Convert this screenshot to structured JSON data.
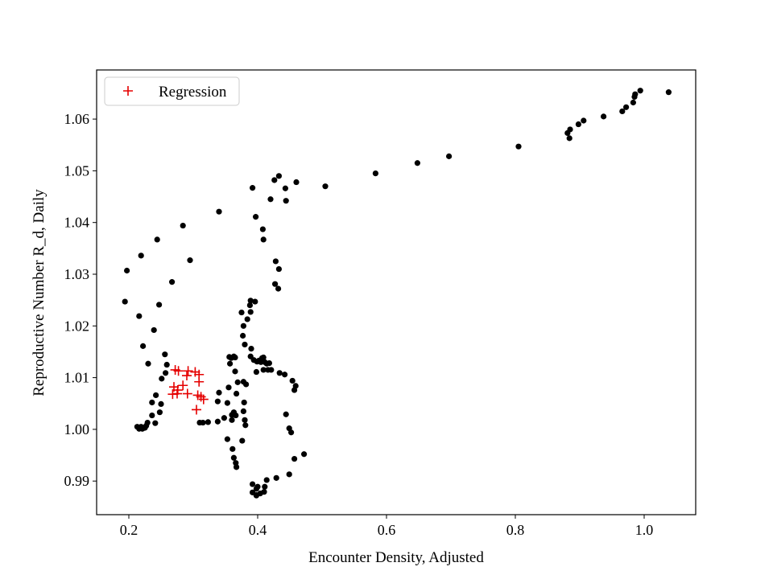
{
  "colors": {
    "background": "#ffffff",
    "observed": "#000000",
    "regression": "#e50000",
    "legend_border": "#cccccc"
  },
  "chart_data": {
    "type": "scatter",
    "xlabel": "Encounter Density, Adjusted",
    "ylabel": "Reproductive Number R_d, Daily",
    "xlim": [
      0.15,
      1.08
    ],
    "ylim": [
      0.9835,
      1.0695
    ],
    "x_ticks": [
      0.2,
      0.4,
      0.6,
      0.8,
      1.0
    ],
    "x_tick_labels": [
      "0.2",
      "0.4",
      "0.6",
      "0.8",
      "1.0"
    ],
    "y_ticks": [
      0.99,
      1.0,
      1.01,
      1.02,
      1.03,
      1.04,
      1.05,
      1.06
    ],
    "y_tick_labels": [
      "0.99",
      "1.00",
      "1.01",
      "1.02",
      "1.03",
      "1.04",
      "1.05",
      "1.06"
    ],
    "grid": false,
    "legend_position": "upper-left",
    "series": [
      {
        "marker": "dot",
        "color": "#000000",
        "points": [
          [
            1.038,
            1.0652
          ],
          [
            0.994,
            1.0655
          ],
          [
            0.986,
            1.0648
          ],
          [
            0.985,
            1.0643
          ],
          [
            0.983,
            1.0632
          ],
          [
            0.972,
            1.0623
          ],
          [
            0.966,
            1.0615
          ],
          [
            0.937,
            1.0605
          ],
          [
            0.906,
            1.0597
          ],
          [
            0.898,
            1.059
          ],
          [
            0.885,
            1.058
          ],
          [
            0.881,
            1.0573
          ],
          [
            0.884,
            1.0563
          ],
          [
            0.805,
            1.0547
          ],
          [
            0.697,
            1.0528
          ],
          [
            0.648,
            1.0515
          ],
          [
            0.583,
            1.0495
          ],
          [
            0.505,
            1.047
          ],
          [
            0.46,
            1.0478
          ],
          [
            0.433,
            1.049
          ],
          [
            0.426,
            1.0482
          ],
          [
            0.443,
            1.0466
          ],
          [
            0.392,
            1.0467
          ],
          [
            0.42,
            1.0445
          ],
          [
            0.444,
            1.0442
          ],
          [
            0.34,
            1.0421
          ],
          [
            0.397,
            1.0411
          ],
          [
            0.408,
            1.0387
          ],
          [
            0.409,
            1.0367
          ],
          [
            0.428,
            1.0325
          ],
          [
            0.433,
            1.031
          ],
          [
            0.427,
            1.0281
          ],
          [
            0.432,
            1.0272
          ],
          [
            0.284,
            1.0394
          ],
          [
            0.244,
            1.0367
          ],
          [
            0.219,
            1.0336
          ],
          [
            0.295,
            1.0327
          ],
          [
            0.197,
            1.0307
          ],
          [
            0.267,
            1.0285
          ],
          [
            0.194,
            1.0247
          ],
          [
            0.247,
            1.0241
          ],
          [
            0.216,
            1.0219
          ],
          [
            0.239,
            1.0192
          ],
          [
            0.222,
            1.0161
          ],
          [
            0.256,
            1.0145
          ],
          [
            0.23,
            1.0127
          ],
          [
            0.259,
            1.0125
          ],
          [
            0.257,
            1.0109
          ],
          [
            0.251,
            1.0098
          ],
          [
            0.242,
            1.0066
          ],
          [
            0.25,
            1.0049
          ],
          [
            0.236,
            1.0052
          ],
          [
            0.236,
            1.0027
          ],
          [
            0.248,
            1.0033
          ],
          [
            0.241,
            1.0012
          ],
          [
            0.229,
            1.0013
          ],
          [
            0.227,
            1.0007
          ],
          [
            0.225,
            1.0003
          ],
          [
            0.219,
            1.0005
          ],
          [
            0.213,
            1.0005
          ],
          [
            0.216,
            1.0001
          ],
          [
            0.221,
            1.0001
          ],
          [
            0.31,
            1.0013
          ],
          [
            0.315,
            1.0013
          ],
          [
            0.323,
            1.0014
          ],
          [
            0.338,
            1.0015
          ],
          [
            0.348,
            1.0022
          ],
          [
            0.353,
            0.9981
          ],
          [
            0.361,
            0.9962
          ],
          [
            0.363,
            0.9945
          ],
          [
            0.366,
            0.9935
          ],
          [
            0.367,
            0.9927
          ],
          [
            0.392,
            0.9894
          ],
          [
            0.4,
            0.9889
          ],
          [
            0.398,
            0.9885
          ],
          [
            0.411,
            0.9889
          ],
          [
            0.414,
            0.9902
          ],
          [
            0.392,
            0.9878
          ],
          [
            0.398,
            0.9873
          ],
          [
            0.404,
            0.9876
          ],
          [
            0.41,
            0.9879
          ],
          [
            0.398,
            0.9872
          ],
          [
            0.429,
            0.9906
          ],
          [
            0.449,
            0.9913
          ],
          [
            0.457,
            0.9943
          ],
          [
            0.472,
            0.9952
          ],
          [
            0.376,
            0.9978
          ],
          [
            0.381,
            1.0008
          ],
          [
            0.38,
            1.0018
          ],
          [
            0.378,
            1.0035
          ],
          [
            0.379,
            1.0052
          ],
          [
            0.366,
            1.0027
          ],
          [
            0.363,
            1.0033
          ],
          [
            0.36,
            1.0028
          ],
          [
            0.36,
            1.0018
          ],
          [
            0.353,
            1.0051
          ],
          [
            0.338,
            1.0054
          ],
          [
            0.34,
            1.0071
          ],
          [
            0.355,
            1.0081
          ],
          [
            0.367,
            1.0069
          ],
          [
            0.369,
            1.0091
          ],
          [
            0.378,
            1.0092
          ],
          [
            0.382,
            1.0087
          ],
          [
            0.365,
            1.0112
          ],
          [
            0.363,
            1.0141
          ],
          [
            0.359,
            1.0138
          ],
          [
            0.365,
            1.0139
          ],
          [
            0.357,
            1.0127
          ],
          [
            0.356,
            1.014
          ],
          [
            0.389,
            1.0141
          ],
          [
            0.394,
            1.0134
          ],
          [
            0.399,
            1.0131
          ],
          [
            0.402,
            1.0133
          ],
          [
            0.407,
            1.0138
          ],
          [
            0.411,
            1.013
          ],
          [
            0.414,
            1.0127
          ],
          [
            0.418,
            1.0128
          ],
          [
            0.405,
            1.013
          ],
          [
            0.409,
            1.0139
          ],
          [
            0.398,
            1.0111
          ],
          [
            0.409,
            1.0115
          ],
          [
            0.416,
            1.0115
          ],
          [
            0.421,
            1.0115
          ],
          [
            0.434,
            1.0109
          ],
          [
            0.442,
            1.0106
          ],
          [
            0.454,
            1.0094
          ],
          [
            0.459,
            1.0084
          ],
          [
            0.457,
            1.0076
          ],
          [
            0.444,
            1.0029
          ],
          [
            0.449,
            1.0002
          ],
          [
            0.452,
            0.9994
          ],
          [
            0.39,
            1.0156
          ],
          [
            0.38,
            1.0164
          ],
          [
            0.377,
            1.0181
          ],
          [
            0.378,
            1.02
          ],
          [
            0.384,
            1.0213
          ],
          [
            0.389,
            1.0227
          ],
          [
            0.388,
            1.024
          ],
          [
            0.389,
            1.0249
          ],
          [
            0.396,
            1.0247
          ],
          [
            0.375,
            1.0226
          ]
        ]
      },
      {
        "name": "Regression",
        "marker": "plus",
        "color": "#e50000",
        "points": [
          [
            0.272,
            1.0115
          ],
          [
            0.277,
            1.0113
          ],
          [
            0.292,
            1.0113
          ],
          [
            0.303,
            1.0111
          ],
          [
            0.309,
            1.0106
          ],
          [
            0.29,
            1.0104
          ],
          [
            0.309,
            1.0092
          ],
          [
            0.284,
            1.0085
          ],
          [
            0.27,
            1.0082
          ],
          [
            0.276,
            1.0076
          ],
          [
            0.268,
            1.0068
          ],
          [
            0.275,
            1.0069
          ],
          [
            0.291,
            1.0069
          ],
          [
            0.307,
            1.0066
          ],
          [
            0.312,
            1.0063
          ],
          [
            0.316,
            1.0058
          ],
          [
            0.305,
            1.0038
          ]
        ]
      }
    ]
  }
}
